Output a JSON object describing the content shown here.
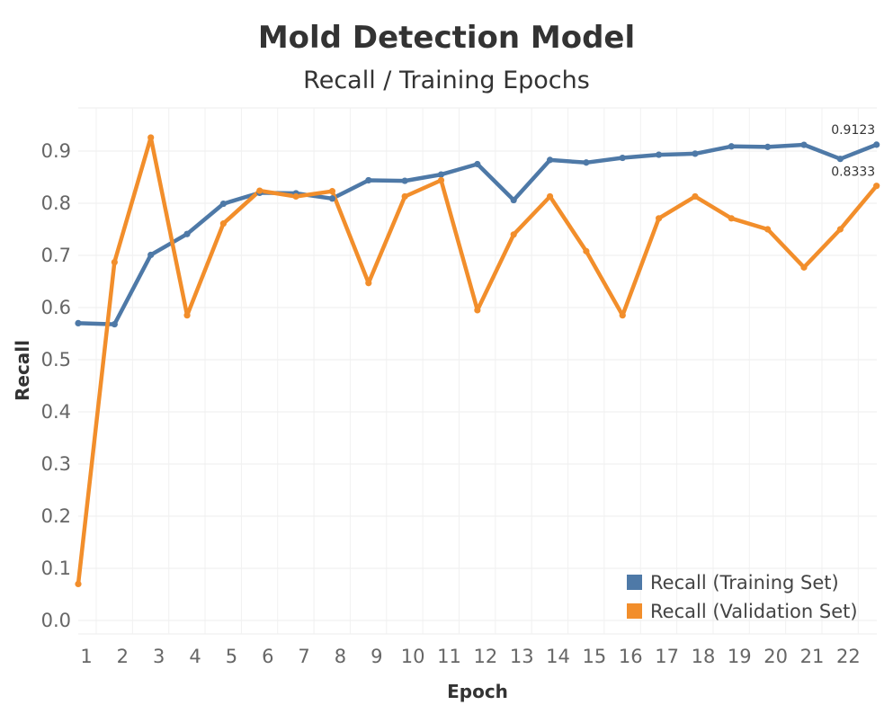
{
  "chart_data": {
    "type": "line",
    "title": "Mold Detection Model",
    "subtitle": "Recall / Training Epochs",
    "xlabel": "Epoch",
    "ylabel": "Recall",
    "x": [
      1,
      2,
      3,
      4,
      5,
      6,
      7,
      8,
      9,
      10,
      11,
      12,
      13,
      14,
      15,
      16,
      17,
      18,
      19,
      20,
      21,
      22,
      23
    ],
    "xticks": [
      "1",
      "2",
      "3",
      "4",
      "5",
      "6",
      "7",
      "8",
      "9",
      "10",
      "11",
      "12",
      "13",
      "14",
      "15",
      "16",
      "17",
      "18",
      "19",
      "20",
      "21",
      "22"
    ],
    "yticks": [
      "0.0",
      "0.1",
      "0.2",
      "0.3",
      "0.4",
      "0.5",
      "0.6",
      "0.7",
      "0.8",
      "0.9"
    ],
    "ylim": [
      0,
      0.97
    ],
    "grid": true,
    "legend_position": "bottom-right",
    "series": [
      {
        "name": "Recall (Training Set)",
        "color": "#4e79a7",
        "values": [
          0.57,
          0.568,
          0.701,
          0.741,
          0.799,
          0.82,
          0.819,
          0.809,
          0.844,
          0.843,
          0.855,
          0.875,
          0.806,
          0.883,
          0.878,
          0.887,
          0.893,
          0.895,
          0.909,
          0.908,
          0.912,
          0.885,
          0.9123
        ]
      },
      {
        "name": "Recall (Validation Set)",
        "color": "#f28e2b",
        "values": [
          0.07,
          0.687,
          0.926,
          0.585,
          0.761,
          0.824,
          0.813,
          0.823,
          0.647,
          0.813,
          0.844,
          0.595,
          0.74,
          0.813,
          0.708,
          0.585,
          0.771,
          0.813,
          0.771,
          0.75,
          0.677,
          0.75,
          0.8333
        ]
      }
    ],
    "annotations": [
      "0.9123",
      "0.8333"
    ]
  }
}
